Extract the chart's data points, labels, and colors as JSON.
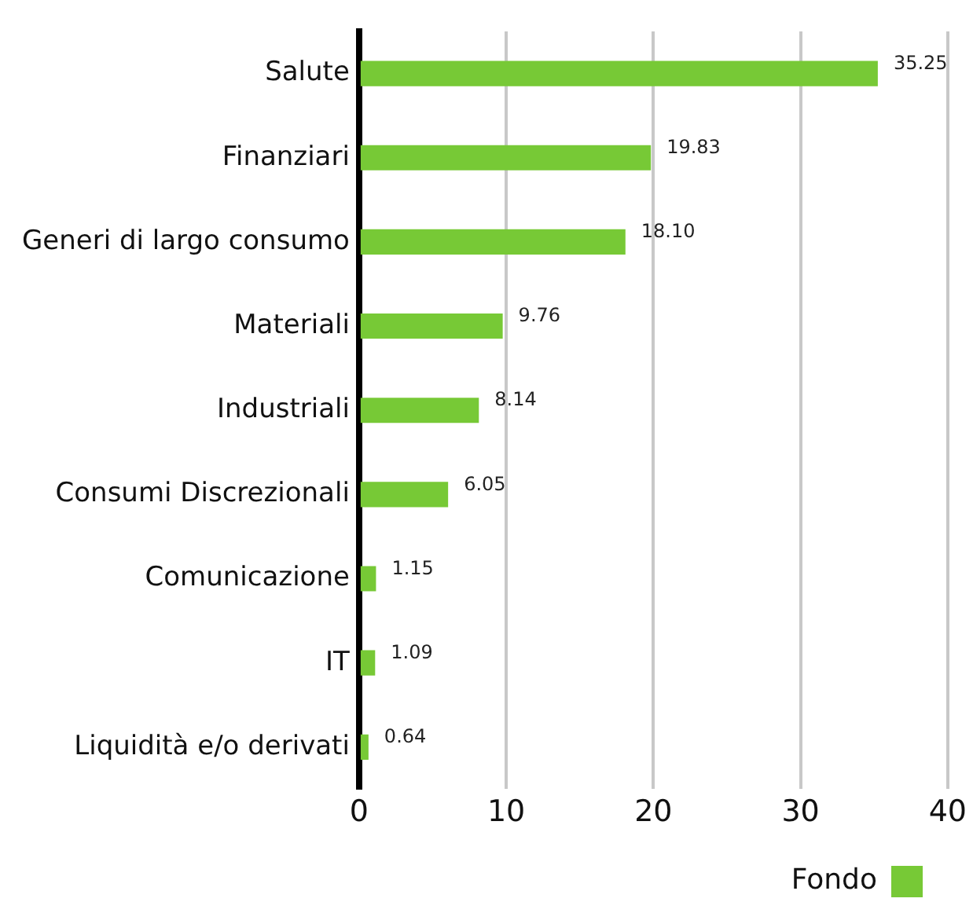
{
  "chart_data": {
    "type": "bar",
    "orientation": "horizontal",
    "categories": [
      "Salute",
      "Finanziari",
      "Generi di largo consumo",
      "Materiali",
      "Industriali",
      "Consumi Discrezionali",
      "Comunicazione",
      "IT",
      "Liquidità e/o derivati"
    ],
    "series": [
      {
        "name": "Fondo",
        "color": "#77c936",
        "values": [
          35.25,
          19.83,
          18.1,
          9.76,
          8.14,
          6.05,
          1.15,
          1.09,
          0.64
        ],
        "value_labels": [
          "35.25",
          "19.83",
          "18.10",
          "9.76",
          "8.14",
          "6.05",
          "1.15",
          "1.09",
          "0.64"
        ]
      }
    ],
    "xlim": [
      0,
      40
    ],
    "xticks": [
      0,
      10,
      20,
      30,
      40
    ],
    "grid": "x",
    "legend": "bottom"
  }
}
